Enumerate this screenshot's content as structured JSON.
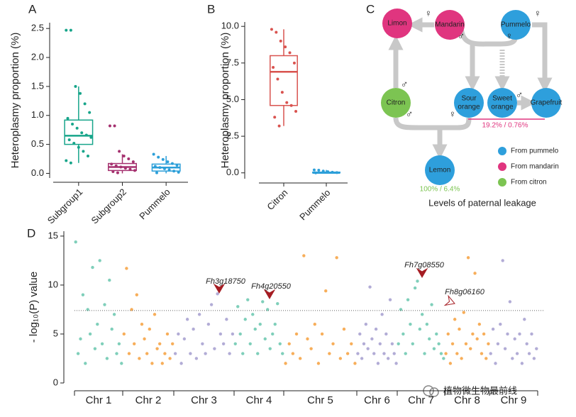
{
  "chart_data": [
    {
      "panel": "A",
      "type": "box",
      "ylabel": "Heteroplasmy proportion (%)",
      "categories": [
        "Subgroup1",
        "Subgroup2",
        "Pummelo"
      ],
      "colors": [
        "#17a58a",
        "#a5316f",
        "#2c9fd9"
      ],
      "boxes": [
        {
          "min": 0.18,
          "q1": 0.5,
          "median": 0.65,
          "q3": 0.92,
          "max": 1.5,
          "points": [
            2.47,
            2.47,
            1.5,
            1.38,
            1.2,
            1.05,
            0.95,
            0.85,
            0.78,
            0.7,
            0.66,
            0.62,
            0.58,
            0.52,
            0.45,
            0.38,
            0.3,
            0.22,
            0.18
          ]
        },
        {
          "min": 0,
          "q1": 0.05,
          "median": 0.11,
          "q3": 0.17,
          "max": 0.33,
          "points": [
            0.82,
            0.82,
            0.38,
            0.3,
            0.25,
            0.2,
            0.16,
            0.13,
            0.11,
            0.09,
            0.07,
            0.05,
            0.03,
            0.01
          ]
        },
        {
          "min": 0,
          "q1": 0.04,
          "median": 0.1,
          "q3": 0.16,
          "max": 0.3,
          "points": [
            0.33,
            0.28,
            0.24,
            0.2,
            0.17,
            0.14,
            0.12,
            0.1,
            0.08,
            0.06,
            0.04,
            0.02,
            0.01
          ]
        }
      ],
      "ylim": [
        -0.08,
        2.6
      ],
      "yticks": [
        {
          "value": 0,
          "label": "0.0"
        },
        0.5,
        {
          "value": 1,
          "label": "1.0"
        },
        1.5,
        {
          "value": 2,
          "label": "2.0"
        },
        2.5
      ]
    },
    {
      "panel": "B",
      "type": "box",
      "ylabel": "Heteroplasmy proportion (%)",
      "categories": [
        "Citron",
        "Pummelo"
      ],
      "colors": [
        "#d9534f",
        "#2c9fd9"
      ],
      "boxes": [
        {
          "min": 3.2,
          "q1": 4.6,
          "median": 6.9,
          "q3": 8.0,
          "max": 9.8,
          "points": [
            9.8,
            9.6,
            9.0,
            8.6,
            8.2,
            7.5,
            7.2,
            6.4,
            5.5,
            4.8,
            4.6,
            4.2,
            3.8,
            3.2
          ]
        },
        {
          "min": 0,
          "q1": 0,
          "median": 0,
          "q3": 0.05,
          "max": 0.2,
          "points": [
            0.2,
            0.18,
            0.12,
            0.08,
            0.04,
            0.02,
            0
          ]
        }
      ],
      "ylim": [
        -0.4,
        10.3
      ],
      "yticks": [
        {
          "value": 0,
          "label": "0.0"
        },
        2.5,
        {
          "value": 5,
          "label": "5.0"
        },
        7.5,
        {
          "value": 10,
          "label": "10.0"
        }
      ]
    },
    {
      "panel": "D",
      "type": "manhattan",
      "ylabel": "- log₁₀(P) value",
      "categories": [
        "Chr 1",
        "Chr 2",
        "Chr 3",
        "Chr 4",
        "Chr 5",
        "Chr 6",
        "Chr 7",
        "Chr 8",
        "Chr 9"
      ],
      "colors": [
        "#7fcfba",
        "#f7ae5a",
        "#b2acd6"
      ],
      "series": [
        [
          14.4,
          3,
          4.5,
          9,
          2,
          7.5,
          5,
          11.8,
          3.5,
          6,
          12.5,
          4,
          8,
          2.5,
          10.5,
          5.5,
          7,
          3,
          4,
          2
        ],
        [
          5,
          11.7,
          3,
          7.5,
          4,
          9,
          2.5,
          6,
          4.5,
          3,
          5.5,
          2,
          7,
          3.5,
          4,
          2,
          3,
          5,
          2.5,
          4
        ],
        [
          3,
          5,
          2,
          4.5,
          6.5,
          3,
          5.5,
          2.5,
          7,
          4,
          3,
          6,
          8,
          3.5,
          9.1,
          5,
          4,
          6.5,
          3,
          5
        ],
        [
          4,
          7.8,
          5,
          3,
          6.5,
          8.5,
          4,
          7,
          5.5,
          3,
          6,
          8.3,
          4.5,
          7.5,
          3.5,
          5,
          6,
          8.1,
          4,
          3
        ],
        [
          2,
          4,
          3,
          5,
          2.5,
          13,
          4.5,
          3.5,
          6,
          2,
          5,
          9.4,
          3,
          4,
          12.8,
          2.5,
          5.5,
          3,
          4,
          2
        ],
        [
          3,
          5,
          2.5,
          4,
          6,
          3.5,
          9.8,
          4.5,
          3,
          5.5,
          2,
          4,
          7,
          3,
          5,
          2.5,
          8.5,
          4,
          3,
          2
        ],
        [
          4,
          7.5,
          5,
          3,
          8.5,
          6,
          4,
          9.7,
          10.4,
          5.5,
          7,
          3,
          6,
          4.5,
          8,
          3.5,
          5,
          4,
          3,
          2.5
        ],
        [
          3,
          5,
          2,
          4,
          6.5,
          3,
          5.5,
          2.5,
          7.2,
          4,
          12.8,
          3.5,
          5,
          11.2,
          4.5,
          6,
          3,
          5,
          2.5,
          4
        ],
        [
          3,
          5.5,
          2,
          4,
          6,
          12.5,
          3.5,
          5,
          8.3,
          2.5,
          4.5,
          3,
          5,
          2,
          6.5,
          4,
          3,
          5,
          2.5,
          3.5
        ]
      ],
      "threshold": 7.4,
      "annotations": [
        "Fh3g18750",
        "Fh4g20550",
        "Fh7g08550",
        "Fh8g06160"
      ],
      "ylim": [
        0,
        15.5
      ],
      "yticks": [
        0,
        5,
        10,
        15
      ]
    }
  ],
  "diagram": {
    "panel": "C",
    "nodes": [
      {
        "label": [
          "Limon"
        ],
        "color": "#e0357f"
      },
      {
        "label": [
          "Mandarin"
        ],
        "color": "#e0357f"
      },
      {
        "label": [
          "Pummelo"
        ],
        "color": "#2e9fdc"
      },
      {
        "label": [
          "Citron"
        ],
        "color": "#7cc452"
      },
      {
        "label": [
          "Sour",
          "orange"
        ],
        "color": "#2e9fdc"
      },
      {
        "label": [
          "Sweet",
          "orange"
        ],
        "color": "#2e9fdc"
      },
      {
        "label": [
          "Grapefruit"
        ],
        "color": "#2e9fdc"
      },
      {
        "label": [
          "Lemon"
        ],
        "color": "#2e9fdc"
      }
    ],
    "symbols": {
      "female": "♀",
      "male": "♂"
    },
    "rates": [
      {
        "text": "19.2% / 0.76%",
        "color": "#e0357f"
      },
      {
        "text": "100% / 6.4%",
        "color": "#7cc452"
      }
    ],
    "legend": [
      {
        "label": "From pummelo",
        "color": "#2e9fdc"
      },
      {
        "label": "From mandarin",
        "color": "#e0357f"
      },
      {
        "label": "From citron",
        "color": "#7cc452"
      }
    ],
    "caption": "Levels of paternal leakage"
  },
  "watermark": "植物微生物最前线"
}
